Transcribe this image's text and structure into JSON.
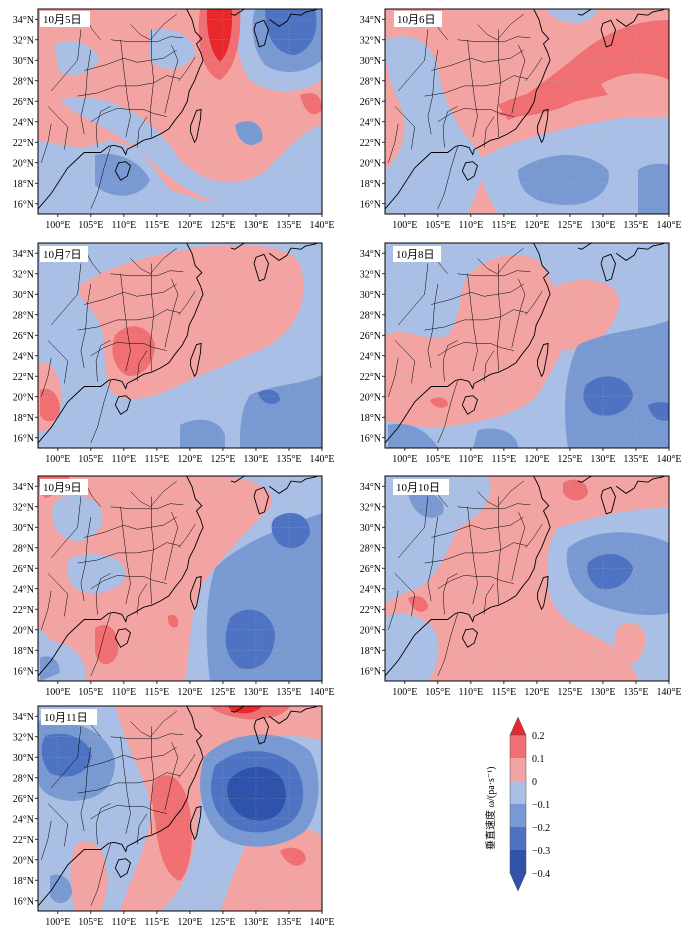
{
  "colors": {
    "r2": "#e8282c",
    "r1": "#ef6f73",
    "r0": "#f4a3a3",
    "b0": "#a9bfe5",
    "b1": "#7999d2",
    "b2": "#4e73c2",
    "b3": "#2f52ab",
    "coast": "#000000",
    "grid": "#b4b4b4"
  },
  "axes": {
    "lat_labels": [
      "16°N",
      "18°N",
      "20°N",
      "22°N",
      "24°N",
      "26°N",
      "28°N",
      "30°N",
      "32°N",
      "34°N"
    ],
    "lon_labels": [
      "100°E",
      "105°E",
      "110°E",
      "115°E",
      "120°E",
      "125°E",
      "130°E",
      "135°E",
      "140°E"
    ]
  },
  "panels": [
    {
      "id": "oct5",
      "date": "10月5日"
    },
    {
      "id": "oct6",
      "date": "10月6日"
    },
    {
      "id": "oct7",
      "date": "10月7日"
    },
    {
      "id": "oct8",
      "date": "10月8日"
    },
    {
      "id": "oct9",
      "date": "10月9日"
    },
    {
      "id": "oct10",
      "date": "10月10日"
    },
    {
      "id": "oct11",
      "date": "10月11日"
    }
  ],
  "colorbar": {
    "title": "垂直速度 ω/(pa·s⁻¹)",
    "ticks": [
      "0.2",
      "0.1",
      "0",
      "−0.1",
      "−0.2",
      "−0.3",
      "−0.4"
    ]
  }
}
